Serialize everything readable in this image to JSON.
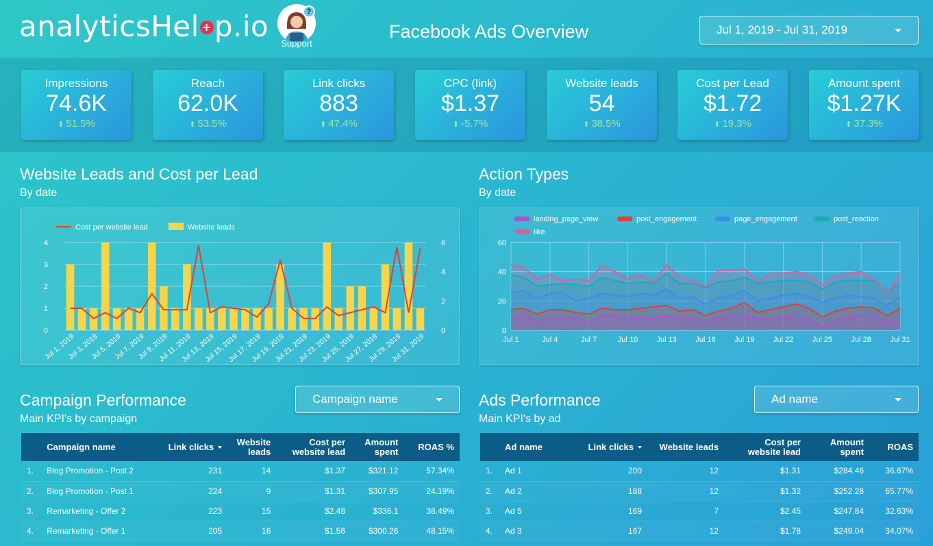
{
  "header": {
    "logo_text_a": "analyticsHel",
    "logo_plus": "+",
    "logo_text_b": "p.io",
    "support_label": "Support",
    "support_q": "?",
    "title": "Facebook Ads Overview",
    "date_range": "Jul 1, 2019 - Jul 31, 2019"
  },
  "kpis": [
    {
      "label": "Impressions",
      "value": "74.6K",
      "delta": "51.5%",
      "dir": "up"
    },
    {
      "label": "Reach",
      "value": "62.0K",
      "delta": "53.5%",
      "dir": "up"
    },
    {
      "label": "Link clicks",
      "value": "883",
      "delta": "47.4%",
      "dir": "up"
    },
    {
      "label": "CPC (link)",
      "value": "$1.37",
      "delta": "-5.7%",
      "dir": "down"
    },
    {
      "label": "Website leads",
      "value": "54",
      "delta": "38.5%",
      "dir": "up"
    },
    {
      "label": "Cost per Lead",
      "value": "$1.72",
      "delta": "19.3%",
      "dir": "up"
    },
    {
      "label": "Amount spent",
      "value": "$1.27K",
      "delta": "37.3%",
      "dir": "up"
    }
  ],
  "sections": {
    "leads": {
      "title": "Website Leads and Cost per Lead",
      "subtitle": "By date"
    },
    "actions": {
      "title": "Action Types",
      "subtitle": "By date"
    },
    "campaign": {
      "title": "Campaign Performance",
      "subtitle": "Main KPI's by campaign",
      "filter": "Campaign name"
    },
    "ads": {
      "title": "Ads Performance",
      "subtitle": "Main KPI's by ad",
      "filter": "Ad name"
    }
  },
  "colors": {
    "bar": "#f7d54a",
    "cpl_line": "#d9433a",
    "landing_page_view": "#a855c9",
    "post_engagement": "#d9433a",
    "page_engagement": "#3a8ee8",
    "post_reaction": "#1aaab8",
    "like": "#d9609e",
    "delta_up": "#9fe6a8"
  },
  "chart_data": [
    {
      "type": "bar",
      "title": "Website Leads and Cost per Lead",
      "legend": [
        "Cost per website lead",
        "Website leads"
      ],
      "x_ticks": [
        "Jul 1, 2019",
        "Jul 3, 2019",
        "Jul 5, 2019",
        "Jul 7, 2019",
        "Jul 9, 2019",
        "Jul 11, 2019",
        "Jul 13, 2019",
        "Jul 15, 2019",
        "Jul 17, 2019",
        "Jul 19, 2019",
        "Jul 21, 2019",
        "Jul 23, 2019",
        "Jul 25, 2019",
        "Jul 27, 2019",
        "Jul 29, 2019",
        "Jul 31, 2019"
      ],
      "y_left_ticks": [
        "0",
        "1",
        "2",
        "3",
        "4"
      ],
      "y_right_ticks": [
        "0",
        "2",
        "4",
        "6"
      ],
      "ylim_left": [
        0,
        4
      ],
      "ylim_right": [
        0,
        6
      ],
      "series": [
        {
          "name": "Website leads",
          "axis": "left",
          "values": [
            3,
            1,
            1,
            4,
            1,
            1,
            1,
            4,
            2,
            1,
            3,
            1,
            1,
            1,
            1,
            1,
            1,
            1,
            3,
            1,
            1,
            1,
            4,
            1,
            2,
            2,
            1,
            3,
            1,
            4,
            1
          ]
        },
        {
          "name": "Cost per website lead",
          "axis": "right",
          "values": [
            1.5,
            1.5,
            0.8,
            1.2,
            0.8,
            1.5,
            1.2,
            2.5,
            1.4,
            1.4,
            1.4,
            5.8,
            1.2,
            1.6,
            1.5,
            1.4,
            0.9,
            1.8,
            4.8,
            1.5,
            0.8,
            0.8,
            1.6,
            1.0,
            1.2,
            1.4,
            1.6,
            1.2,
            5.7,
            1.2,
            5.6
          ]
        }
      ]
    },
    {
      "type": "area",
      "title": "Action Types",
      "x": [
        1,
        2,
        3,
        4,
        5,
        6,
        7,
        8,
        9,
        10,
        11,
        12,
        13,
        14,
        15,
        16,
        17,
        18,
        19,
        20,
        21,
        22,
        23,
        24,
        25,
        26,
        27,
        28,
        29,
        30,
        31
      ],
      "x_ticks": [
        "Jul 1",
        "Jul 4",
        "Jul 7",
        "Jul 10",
        "Jul 13",
        "Jul 16",
        "Jul 19",
        "Jul 22",
        "Jul 25",
        "Jul 28",
        "Jul 31"
      ],
      "y_ticks": [
        "0",
        "20",
        "40",
        "60"
      ],
      "ylim": [
        0,
        60
      ],
      "legend": [
        "landing_page_view",
        "post_engagement",
        "page_engagement",
        "post_reaction",
        "like"
      ],
      "series": [
        {
          "name": "landing_page_view",
          "values": [
            9,
            10,
            6,
            9,
            8,
            9,
            5,
            10,
            10,
            8,
            9,
            8,
            10,
            8,
            9,
            6,
            9,
            10,
            10,
            8,
            8,
            9,
            10,
            8,
            2,
            7,
            9,
            10,
            10,
            6,
            8
          ]
        },
        {
          "name": "post_engagement",
          "values": [
            14,
            15,
            11,
            14,
            14,
            12,
            11,
            15,
            14,
            14,
            15,
            16,
            17,
            13,
            14,
            10,
            13,
            15,
            19,
            12,
            14,
            16,
            18,
            15,
            9,
            13,
            15,
            16,
            15,
            10,
            15
          ]
        },
        {
          "name": "page_engagement",
          "values": [
            26,
            27,
            22,
            25,
            26,
            20,
            22,
            25,
            24,
            23,
            25,
            24,
            28,
            22,
            23,
            18,
            22,
            24,
            27,
            20,
            22,
            24,
            25,
            23,
            19,
            22,
            24,
            23,
            22,
            17,
            23
          ]
        },
        {
          "name": "post_reaction",
          "values": [
            38,
            36,
            30,
            31,
            32,
            31,
            30,
            36,
            34,
            32,
            33,
            32,
            39,
            32,
            32,
            29,
            33,
            34,
            36,
            32,
            33,
            34,
            34,
            33,
            28,
            33,
            34,
            34,
            34,
            26,
            32
          ]
        },
        {
          "name": "like",
          "values": [
            45,
            43,
            35,
            38,
            34,
            35,
            34,
            44,
            40,
            35,
            38,
            33,
            45,
            36,
            34,
            30,
            41,
            41,
            42,
            33,
            39,
            39,
            40,
            38,
            31,
            37,
            39,
            40,
            35,
            25,
            39
          ]
        }
      ]
    }
  ],
  "campaign_table": {
    "headers": [
      "Campaign name",
      "Link clicks",
      "Website leads",
      "Cost per website lead",
      "Amount spent",
      "ROAS %"
    ],
    "rows": [
      {
        "idx": "1.",
        "name": "Blog Promotion - Post 2",
        "clicks": "231",
        "leads": "14",
        "cpl": "$1.37",
        "spent": "$321.12",
        "roas": "57.34%"
      },
      {
        "idx": "2.",
        "name": "Blog Promotion - Post 1",
        "clicks": "224",
        "leads": "9",
        "cpl": "$1.31",
        "spent": "$307.95",
        "roas": "24.19%"
      },
      {
        "idx": "3.",
        "name": "Remarketing - Offer 2",
        "clicks": "223",
        "leads": "15",
        "cpl": "$2.48",
        "spent": "$336.1",
        "roas": "38.49%"
      },
      {
        "idx": "4.",
        "name": "Remarketing - Offer 1",
        "clicks": "205",
        "leads": "16",
        "cpl": "$1.56",
        "spent": "$300.26",
        "roas": "48.15%"
      }
    ]
  },
  "ads_table": {
    "headers": [
      "Ad name",
      "Link clicks",
      "Website leads",
      "Cost per website lead",
      "Amount spent",
      "ROAS"
    ],
    "rows": [
      {
        "idx": "1.",
        "name": "Ad 1",
        "clicks": "200",
        "leads": "12",
        "cpl": "$1.31",
        "spent": "$284.46",
        "roas": "36.67%"
      },
      {
        "idx": "2.",
        "name": "Ad 2",
        "clicks": "188",
        "leads": "12",
        "cpl": "$1.32",
        "spent": "$252.28",
        "roas": "65.77%"
      },
      {
        "idx": "3.",
        "name": "Ad 5",
        "clicks": "169",
        "leads": "7",
        "cpl": "$2.45",
        "spent": "$247.84",
        "roas": "32.63%"
      },
      {
        "idx": "4.",
        "name": "Ad 3",
        "clicks": "167",
        "leads": "12",
        "cpl": "$1.78",
        "spent": "$249.04",
        "roas": "34.07%"
      }
    ]
  }
}
